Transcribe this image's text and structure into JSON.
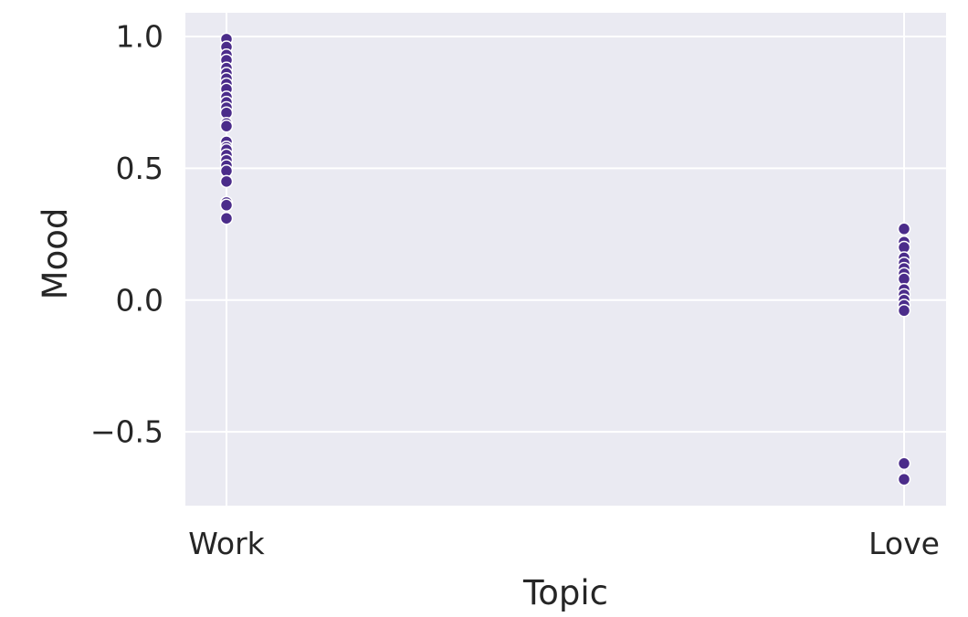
{
  "chart_data": {
    "type": "scatter",
    "title": "",
    "xlabel": "Topic",
    "ylabel": "Mood",
    "categories": [
      "Work",
      "Love"
    ],
    "ylim": [
      -0.78,
      1.09
    ],
    "yticks": [
      1.0,
      0.5,
      0.0,
      -0.5
    ],
    "ytick_labels": [
      "1.0",
      "0.5",
      "0.0",
      "−0.5"
    ],
    "grid": true,
    "background_color": "#eaeaf2",
    "grid_color": "#ffffff",
    "marker_color": "#4b2c8a",
    "series": [
      {
        "category": "Work",
        "values": [
          0.99,
          0.96,
          0.93,
          0.91,
          0.88,
          0.86,
          0.84,
          0.82,
          0.8,
          0.77,
          0.75,
          0.73,
          0.71,
          0.67,
          0.66,
          0.6,
          0.58,
          0.57,
          0.55,
          0.53,
          0.51,
          0.49,
          0.45,
          0.37,
          0.36,
          0.31
        ]
      },
      {
        "category": "Love",
        "values": [
          0.27,
          0.22,
          0.2,
          0.16,
          0.14,
          0.12,
          0.1,
          0.08,
          0.04,
          0.02,
          0.0,
          -0.02,
          -0.04,
          -0.62,
          -0.68
        ]
      }
    ]
  }
}
